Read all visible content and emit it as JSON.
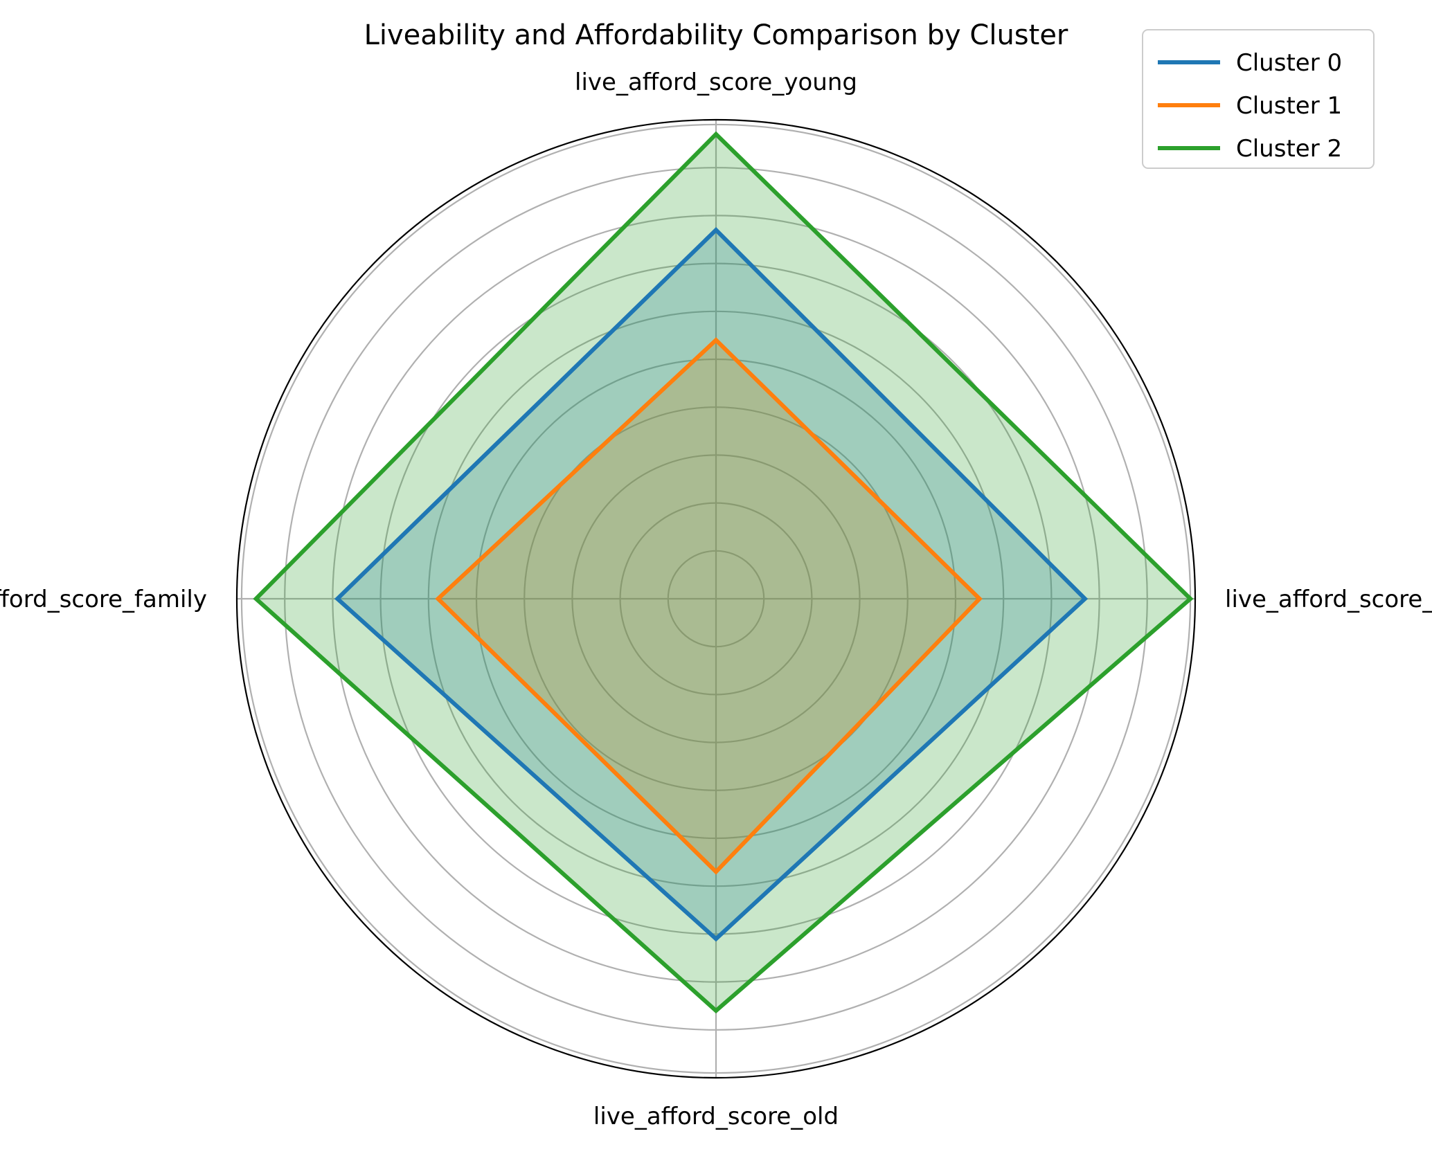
{
  "chart_data": {
    "type": "radar",
    "title": "Liveability and Affordability Comparison by Cluster",
    "axes": [
      "live_afford_score_overall",
      "live_afford_score_young",
      "live_afford_score_family",
      "live_afford_score_old"
    ],
    "rmax": 1.0,
    "grid_rings": [
      0.1,
      0.2,
      0.3,
      0.4,
      0.5,
      0.6,
      0.7,
      0.8,
      0.9,
      0.99
    ],
    "radial_tick_labels": "none",
    "grid": true,
    "legend_position": "top-right",
    "series": [
      {
        "name": "Cluster 0",
        "color": "#1f77b4",
        "values": [
          0.77,
          0.77,
          0.79,
          0.71
        ]
      },
      {
        "name": "Cluster 1",
        "color": "#ff7f0e",
        "values": [
          0.55,
          0.54,
          0.58,
          0.57
        ]
      },
      {
        "name": "Cluster 2",
        "color": "#2ca02c",
        "values": [
          0.99,
          0.97,
          0.96,
          0.86
        ]
      }
    ]
  }
}
